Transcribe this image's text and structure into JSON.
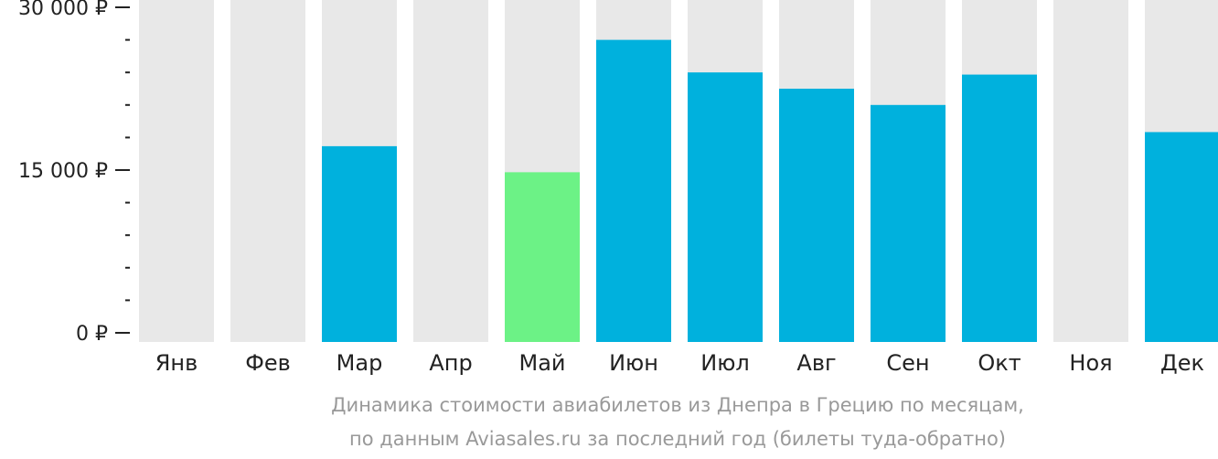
{
  "chart_data": {
    "type": "bar",
    "categories": [
      "Янв",
      "Фев",
      "Мар",
      "Апр",
      "Май",
      "Июн",
      "Июл",
      "Авг",
      "Сен",
      "Окт",
      "Ноя",
      "Дек"
    ],
    "values": [
      null,
      null,
      17200,
      null,
      14800,
      27000,
      24000,
      22500,
      21000,
      23800,
      null,
      18500
    ],
    "highlight_index": 4,
    "ylim": [
      0,
      30000
    ],
    "y_ticks": [
      {
        "value": 0,
        "label": "0 ₽"
      },
      {
        "value": 15000,
        "label": "15 000 ₽"
      },
      {
        "value": 30000,
        "label": "30 000 ₽"
      }
    ],
    "minor_tick_step": 3000,
    "grid": false,
    "caption_lines": [
      "Динамика стоимости авиабилетов из Днепра в Грецию по месяцам,",
      "по данным Aviasales.ru за последний год (билеты туда-обратно)"
    ],
    "colors": {
      "bar": "#00b1dd",
      "highlight": "#6cf286",
      "background_column": "#e8e8e8",
      "axis": "#222222",
      "caption": "#999999"
    }
  }
}
